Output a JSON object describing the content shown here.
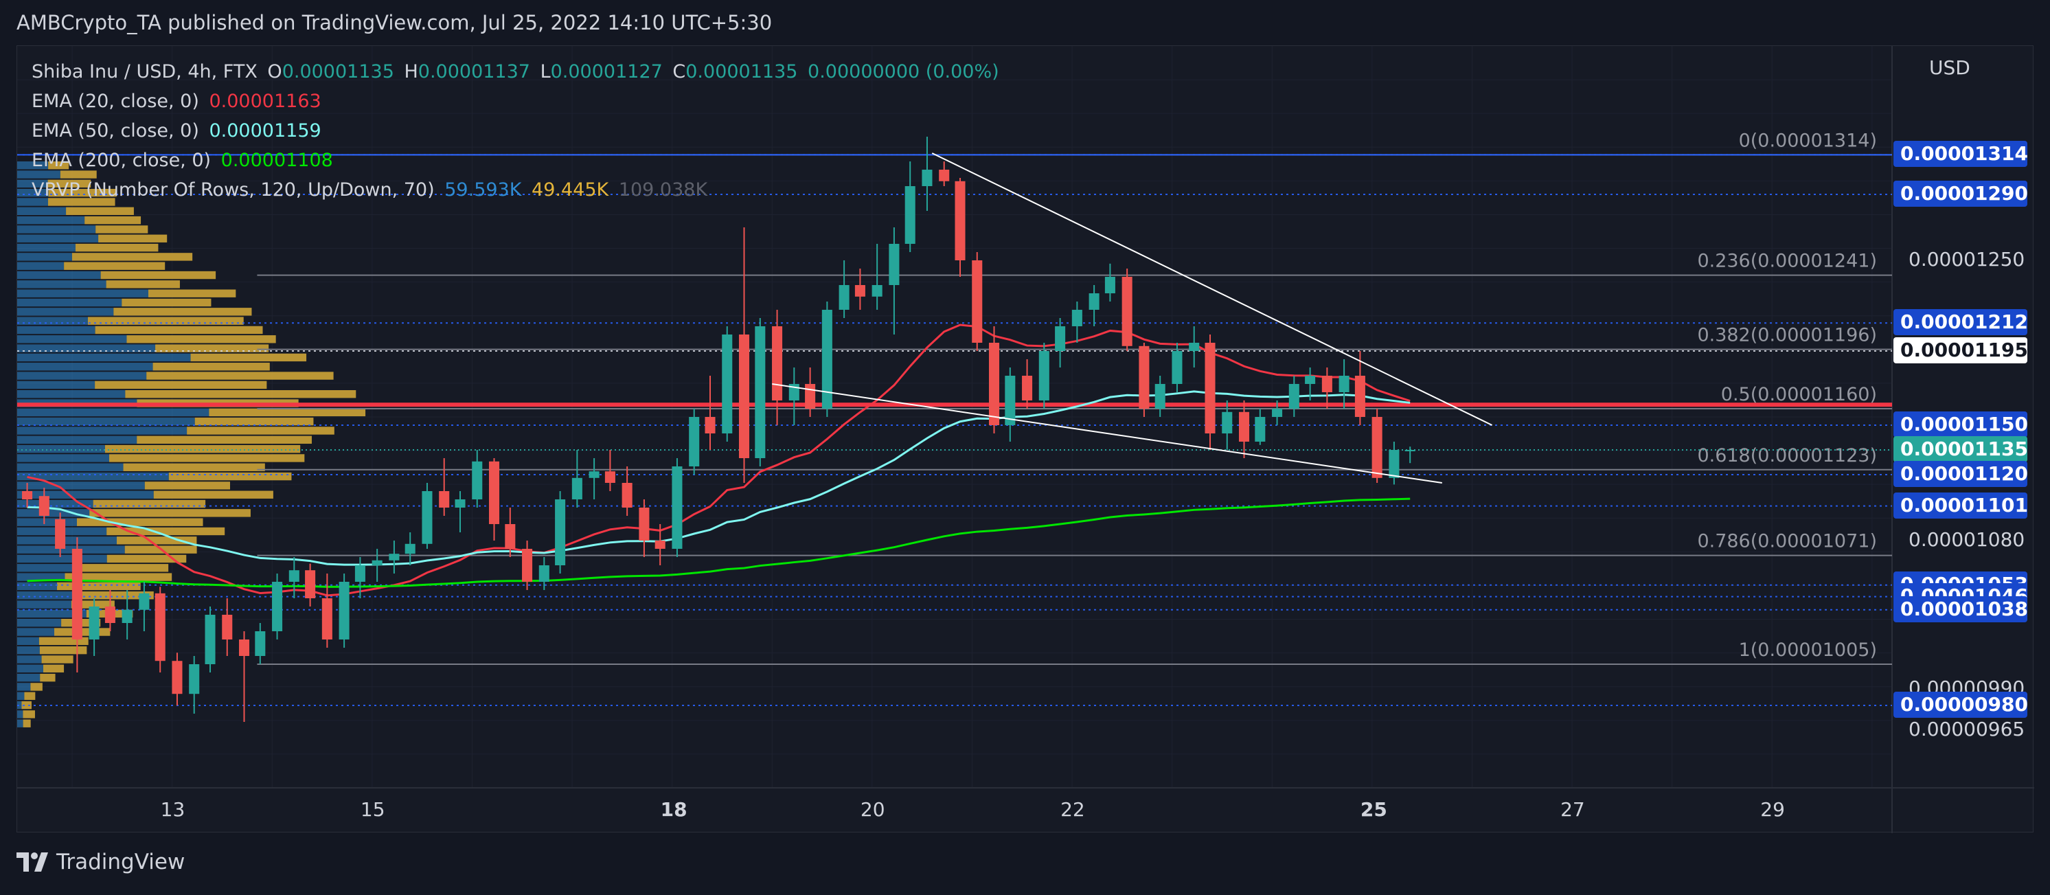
{
  "header": {
    "published_by": "AMBCrypto_TA published on TradingView.com, Jul 25, 2022 14:10 UTC+5:30"
  },
  "legend": {
    "symbol": "Shiba Inu / USD, 4h, FTX",
    "ohlc": {
      "o_label": "O",
      "o": "0.00001135",
      "h_label": "H",
      "h": "0.00001137",
      "l_label": "L",
      "l": "0.00001127",
      "c_label": "C",
      "c": "0.00001135",
      "change": "0.00000000 (0.00%)"
    },
    "ema20": {
      "label": "EMA (20, close, 0)",
      "value": "0.00001163",
      "color": "#f23645"
    },
    "ema50": {
      "label": "EMA (50, close, 0)",
      "value": "0.00001159",
      "color": "#7ff6f0"
    },
    "ema200": {
      "label": "EMA (200, close, 0)",
      "value": "0.00001108",
      "color": "#00e600"
    },
    "vrvp": {
      "label": "VRVP (Number Of Rows, 120, Up/Down, 70)",
      "up": "59.593K",
      "down": "49.445K",
      "total": "109.038K",
      "up_color": "#2f8bd3",
      "down_color": "#e5b53a"
    }
  },
  "brand": {
    "name": "TradingView"
  },
  "chart_data": {
    "type": "candlestick",
    "currency": "USD",
    "timeframe": "4h",
    "ylim": [
      9.3e-06,
      1.38e-05
    ],
    "x_ticks": [
      {
        "label": "13",
        "day": 13,
        "bold": false
      },
      {
        "label": "15",
        "day": 15,
        "bold": false
      },
      {
        "label": "18",
        "day": 18,
        "bold": true
      },
      {
        "label": "20",
        "day": 20,
        "bold": false
      },
      {
        "label": "22",
        "day": 22,
        "bold": false
      },
      {
        "label": "25",
        "day": 25,
        "bold": true
      },
      {
        "label": "27",
        "day": 27,
        "bold": false
      },
      {
        "label": "29",
        "day": 29,
        "bold": false
      }
    ],
    "xlim": [
      11.45,
      30.2
    ],
    "y_axis_labels": [
      "0.00001250",
      "0.00001080",
      "0.00000990",
      "0.00000965"
    ],
    "price_tags": [
      {
        "label": "0.00001314",
        "value": 1.314e-05,
        "style": "blue"
      },
      {
        "label": "0.00001290",
        "value": 1.29e-05,
        "style": "blue"
      },
      {
        "label": "0.00001212",
        "value": 1.212e-05,
        "style": "blue"
      },
      {
        "label": "0.00001195",
        "value": 1.195e-05,
        "style": "white"
      },
      {
        "label": "0.00001150",
        "value": 1.15e-05,
        "style": "blue"
      },
      {
        "label": "0.00001135",
        "value": 1.135e-05,
        "style": "teal"
      },
      {
        "label": "0.00001120",
        "value": 1.12e-05,
        "style": "blue"
      },
      {
        "label": "0.00001101",
        "value": 1.101e-05,
        "style": "blue"
      },
      {
        "label": "0.00001053",
        "value": 1.053e-05,
        "style": "blue"
      },
      {
        "label": "0.00001046",
        "value": 1.046e-05,
        "style": "blue"
      },
      {
        "label": "0.00001038",
        "value": 1.038e-05,
        "style": "blue"
      },
      {
        "label": "0.00000980",
        "value": 9.8e-06,
        "style": "blue"
      }
    ],
    "fib_levels": [
      {
        "label": "0(0.00001314)",
        "value": 1.314e-05
      },
      {
        "label": "0.236(0.00001241)",
        "value": 1.241e-05
      },
      {
        "label": "0.382(0.00001196)",
        "value": 1.196e-05
      },
      {
        "label": "0.5(0.00001160)",
        "value": 1.16e-05
      },
      {
        "label": "0.618(0.00001123)",
        "value": 1.123e-05
      },
      {
        "label": "0.786(0.00001071)",
        "value": 1.071e-05
      },
      {
        "label": "1(0.00001005)",
        "value": 1.005e-05
      }
    ],
    "candles": [
      {
        "t": 11.55,
        "o": 1.11,
        "h": 1.115,
        "l": 1.1,
        "c": 1.105
      },
      {
        "t": 11.72,
        "o": 1.107,
        "h": 1.112,
        "l": 1.09,
        "c": 1.095
      },
      {
        "t": 11.88,
        "o": 1.093,
        "h": 1.097,
        "l": 1.07,
        "c": 1.075
      },
      {
        "t": 12.05,
        "o": 1.075,
        "h": 1.082,
        "l": 1.0,
        "c": 1.02
      },
      {
        "t": 12.22,
        "o": 1.02,
        "h": 1.045,
        "l": 1.01,
        "c": 1.04
      },
      {
        "t": 12.38,
        "o": 1.04,
        "h": 1.05,
        "l": 1.025,
        "c": 1.03
      },
      {
        "t": 12.55,
        "o": 1.03,
        "h": 1.05,
        "l": 1.02,
        "c": 1.038
      },
      {
        "t": 12.72,
        "o": 1.038,
        "h": 1.055,
        "l": 1.025,
        "c": 1.048
      },
      {
        "t": 12.88,
        "o": 1.048,
        "h": 1.052,
        "l": 1.0,
        "c": 1.007
      },
      {
        "t": 13.05,
        "o": 1.007,
        "h": 1.012,
        "l": 0.98,
        "c": 0.987
      },
      {
        "t": 13.22,
        "o": 0.987,
        "h": 1.01,
        "l": 0.975,
        "c": 1.005
      },
      {
        "t": 13.38,
        "o": 1.005,
        "h": 1.04,
        "l": 1.0,
        "c": 1.035
      },
      {
        "t": 13.55,
        "o": 1.035,
        "h": 1.045,
        "l": 1.01,
        "c": 1.02
      },
      {
        "t": 13.72,
        "o": 1.02,
        "h": 1.025,
        "l": 0.97,
        "c": 1.01
      },
      {
        "t": 13.88,
        "o": 1.01,
        "h": 1.03,
        "l": 1.005,
        "c": 1.025
      },
      {
        "t": 14.05,
        "o": 1.025,
        "h": 1.06,
        "l": 1.02,
        "c": 1.055
      },
      {
        "t": 14.22,
        "o": 1.055,
        "h": 1.07,
        "l": 1.045,
        "c": 1.062
      },
      {
        "t": 14.38,
        "o": 1.062,
        "h": 1.066,
        "l": 1.04,
        "c": 1.045
      },
      {
        "t": 14.55,
        "o": 1.045,
        "h": 1.06,
        "l": 1.015,
        "c": 1.02
      },
      {
        "t": 14.72,
        "o": 1.02,
        "h": 1.06,
        "l": 1.015,
        "c": 1.055
      },
      {
        "t": 14.88,
        "o": 1.055,
        "h": 1.07,
        "l": 1.045,
        "c": 1.065
      },
      {
        "t": 15.05,
        "o": 1.065,
        "h": 1.075,
        "l": 1.055,
        "c": 1.068
      },
      {
        "t": 15.22,
        "o": 1.068,
        "h": 1.08,
        "l": 1.06,
        "c": 1.072
      },
      {
        "t": 15.38,
        "o": 1.072,
        "h": 1.085,
        "l": 1.065,
        "c": 1.078
      },
      {
        "t": 15.55,
        "o": 1.078,
        "h": 1.115,
        "l": 1.075,
        "c": 1.11
      },
      {
        "t": 15.72,
        "o": 1.11,
        "h": 1.13,
        "l": 1.095,
        "c": 1.1
      },
      {
        "t": 15.88,
        "o": 1.1,
        "h": 1.11,
        "l": 1.085,
        "c": 1.105
      },
      {
        "t": 16.05,
        "o": 1.105,
        "h": 1.135,
        "l": 1.1,
        "c": 1.128
      },
      {
        "t": 16.22,
        "o": 1.128,
        "h": 1.13,
        "l": 1.08,
        "c": 1.09
      },
      {
        "t": 16.38,
        "o": 1.09,
        "h": 1.1,
        "l": 1.07,
        "c": 1.075
      },
      {
        "t": 16.55,
        "o": 1.075,
        "h": 1.08,
        "l": 1.05,
        "c": 1.055
      },
      {
        "t": 16.72,
        "o": 1.055,
        "h": 1.07,
        "l": 1.05,
        "c": 1.065
      },
      {
        "t": 16.88,
        "o": 1.065,
        "h": 1.11,
        "l": 1.06,
        "c": 1.105
      },
      {
        "t": 17.05,
        "o": 1.105,
        "h": 1.135,
        "l": 1.1,
        "c": 1.118
      },
      {
        "t": 17.22,
        "o": 1.118,
        "h": 1.13,
        "l": 1.105,
        "c": 1.122
      },
      {
        "t": 17.38,
        "o": 1.122,
        "h": 1.135,
        "l": 1.11,
        "c": 1.115
      },
      {
        "t": 17.55,
        "o": 1.115,
        "h": 1.125,
        "l": 1.095,
        "c": 1.1
      },
      {
        "t": 17.72,
        "o": 1.1,
        "h": 1.105,
        "l": 1.07,
        "c": 1.08
      },
      {
        "t": 17.88,
        "o": 1.08,
        "h": 1.09,
        "l": 1.065,
        "c": 1.075
      },
      {
        "t": 18.05,
        "o": 1.075,
        "h": 1.13,
        "l": 1.07,
        "c": 1.125
      },
      {
        "t": 18.22,
        "o": 1.125,
        "h": 1.16,
        "l": 1.12,
        "c": 1.155
      },
      {
        "t": 18.38,
        "o": 1.155,
        "h": 1.18,
        "l": 1.135,
        "c": 1.145
      },
      {
        "t": 18.55,
        "o": 1.145,
        "h": 1.21,
        "l": 1.14,
        "c": 1.205
      },
      {
        "t": 18.72,
        "o": 1.205,
        "h": 1.27,
        "l": 1.115,
        "c": 1.13
      },
      {
        "t": 18.88,
        "o": 1.13,
        "h": 1.215,
        "l": 1.125,
        "c": 1.21
      },
      {
        "t": 19.05,
        "o": 1.21,
        "h": 1.22,
        "l": 1.15,
        "c": 1.165
      },
      {
        "t": 19.22,
        "o": 1.165,
        "h": 1.185,
        "l": 1.15,
        "c": 1.175
      },
      {
        "t": 19.38,
        "o": 1.175,
        "h": 1.185,
        "l": 1.155,
        "c": 1.16
      },
      {
        "t": 19.55,
        "o": 1.16,
        "h": 1.225,
        "l": 1.155,
        "c": 1.22
      },
      {
        "t": 19.72,
        "o": 1.22,
        "h": 1.25,
        "l": 1.215,
        "c": 1.235
      },
      {
        "t": 19.88,
        "o": 1.235,
        "h": 1.245,
        "l": 1.22,
        "c": 1.228
      },
      {
        "t": 20.05,
        "o": 1.228,
        "h": 1.26,
        "l": 1.22,
        "c": 1.235
      },
      {
        "t": 20.22,
        "o": 1.235,
        "h": 1.27,
        "l": 1.205,
        "c": 1.26
      },
      {
        "t": 20.38,
        "o": 1.26,
        "h": 1.31,
        "l": 1.255,
        "c": 1.295
      },
      {
        "t": 20.55,
        "o": 1.295,
        "h": 1.325,
        "l": 1.28,
        "c": 1.305
      },
      {
        "t": 20.72,
        "o": 1.305,
        "h": 1.31,
        "l": 1.295,
        "c": 1.298
      },
      {
        "t": 20.88,
        "o": 1.298,
        "h": 1.3,
        "l": 1.24,
        "c": 1.25
      },
      {
        "t": 21.05,
        "o": 1.25,
        "h": 1.255,
        "l": 1.195,
        "c": 1.2
      },
      {
        "t": 21.22,
        "o": 1.2,
        "h": 1.21,
        "l": 1.145,
        "c": 1.15
      },
      {
        "t": 21.38,
        "o": 1.15,
        "h": 1.185,
        "l": 1.14,
        "c": 1.18
      },
      {
        "t": 21.55,
        "o": 1.18,
        "h": 1.19,
        "l": 1.16,
        "c": 1.165
      },
      {
        "t": 21.72,
        "o": 1.165,
        "h": 1.2,
        "l": 1.16,
        "c": 1.195
      },
      {
        "t": 21.88,
        "o": 1.195,
        "h": 1.215,
        "l": 1.185,
        "c": 1.21
      },
      {
        "t": 22.05,
        "o": 1.21,
        "h": 1.225,
        "l": 1.2,
        "c": 1.22
      },
      {
        "t": 22.22,
        "o": 1.22,
        "h": 1.235,
        "l": 1.21,
        "c": 1.23
      },
      {
        "t": 22.38,
        "o": 1.23,
        "h": 1.248,
        "l": 1.225,
        "c": 1.24
      },
      {
        "t": 22.55,
        "o": 1.24,
        "h": 1.245,
        "l": 1.195,
        "c": 1.198
      },
      {
        "t": 22.72,
        "o": 1.198,
        "h": 1.2,
        "l": 1.155,
        "c": 1.16
      },
      {
        "t": 22.88,
        "o": 1.16,
        "h": 1.18,
        "l": 1.155,
        "c": 1.175
      },
      {
        "t": 23.05,
        "o": 1.175,
        "h": 1.2,
        "l": 1.17,
        "c": 1.195
      },
      {
        "t": 23.22,
        "o": 1.195,
        "h": 1.21,
        "l": 1.185,
        "c": 1.2
      },
      {
        "t": 23.38,
        "o": 1.2,
        "h": 1.205,
        "l": 1.135,
        "c": 1.145
      },
      {
        "t": 23.55,
        "o": 1.145,
        "h": 1.165,
        "l": 1.135,
        "c": 1.158
      },
      {
        "t": 23.72,
        "o": 1.158,
        "h": 1.165,
        "l": 1.13,
        "c": 1.14
      },
      {
        "t": 23.88,
        "o": 1.14,
        "h": 1.16,
        "l": 1.138,
        "c": 1.155
      },
      {
        "t": 24.05,
        "o": 1.155,
        "h": 1.165,
        "l": 1.15,
        "c": 1.16
      },
      {
        "t": 24.22,
        "o": 1.16,
        "h": 1.18,
        "l": 1.155,
        "c": 1.175
      },
      {
        "t": 24.38,
        "o": 1.175,
        "h": 1.185,
        "l": 1.165,
        "c": 1.18
      },
      {
        "t": 24.55,
        "o": 1.18,
        "h": 1.185,
        "l": 1.16,
        "c": 1.17
      },
      {
        "t": 24.72,
        "o": 1.17,
        "h": 1.19,
        "l": 1.16,
        "c": 1.18
      },
      {
        "t": 24.88,
        "o": 1.18,
        "h": 1.195,
        "l": 1.15,
        "c": 1.155
      },
      {
        "t": 25.05,
        "o": 1.155,
        "h": 1.16,
        "l": 1.115,
        "c": 1.118
      },
      {
        "t": 25.22,
        "o": 1.118,
        "h": 1.14,
        "l": 1.114,
        "c": 1.135
      },
      {
        "t": 25.38,
        "o": 1.135,
        "h": 1.137,
        "l": 1.127,
        "c": 1.135
      }
    ],
    "volume_profile": {
      "rows": 120,
      "up_color": "#2f8bd3",
      "down_color": "#e5b53a",
      "poc_price": 1.162e-05
    },
    "trendlines": [
      {
        "from": [
          20.6,
          1.315
        ],
        "to": [
          26.2,
          1.15
        ]
      },
      {
        "from": [
          19.0,
          1.175
        ],
        "to": [
          25.7,
          1.115
        ]
      }
    ]
  }
}
